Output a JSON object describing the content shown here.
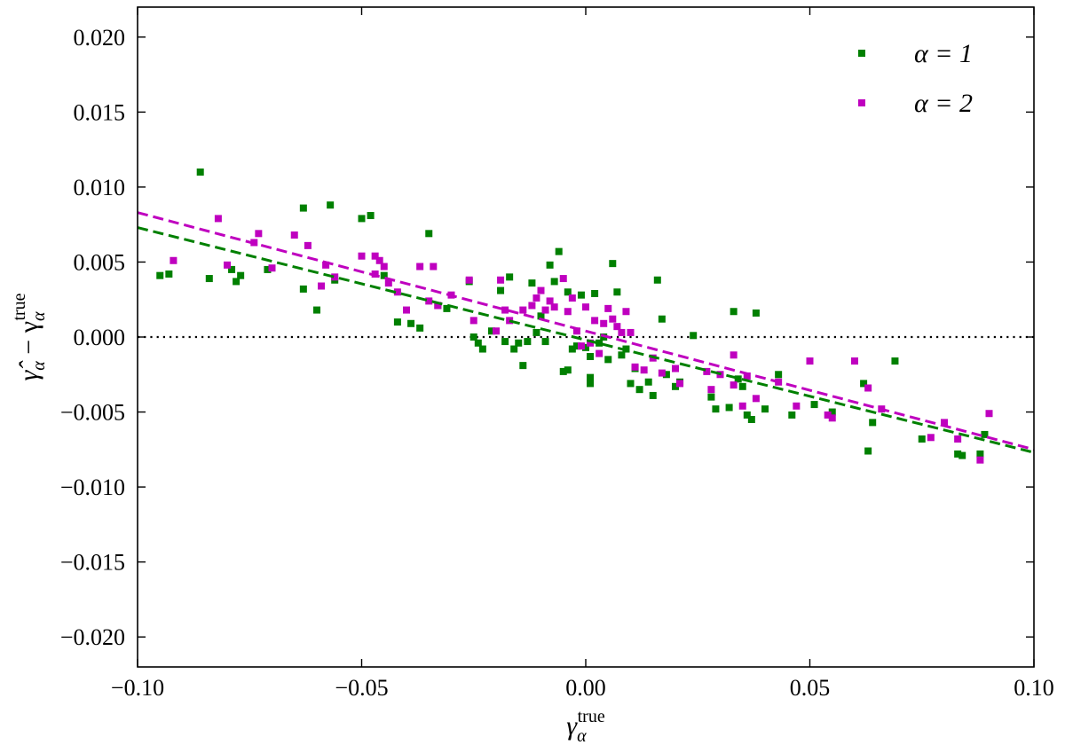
{
  "chart_data": {
    "type": "scatter",
    "title": "",
    "xlabel": "γ_α^true",
    "ylabel": "γ̂_α − γ_α^true",
    "xlim": [
      -0.1,
      0.1
    ],
    "ylim": [
      -0.022,
      0.022
    ],
    "xticks": [
      -0.1,
      -0.05,
      0.0,
      0.05,
      0.1
    ],
    "xtick_labels": [
      "−0.10",
      "−0.05",
      "0.00",
      "0.05",
      "0.10"
    ],
    "yticks": [
      -0.02,
      -0.015,
      -0.01,
      -0.005,
      0.0,
      0.005,
      0.01,
      0.015,
      0.02
    ],
    "ytick_labels": [
      "−0.020",
      "−0.015",
      "−0.010",
      "−0.005",
      "0.000",
      "0.005",
      "0.010",
      "0.015",
      "0.020"
    ],
    "grid": false,
    "legend_position": "top-right",
    "reference_line": {
      "y": 0.0,
      "style": "dotted",
      "color": "#000000"
    },
    "series": [
      {
        "name": "α = 1",
        "color": "#008000",
        "marker": "square",
        "fit": {
          "x": [
            -0.1,
            0.1
          ],
          "y": [
            0.0073,
            -0.0077
          ]
        },
        "points": [
          [
            -0.095,
            0.0041
          ],
          [
            -0.093,
            0.0042
          ],
          [
            -0.086,
            0.011
          ],
          [
            -0.084,
            0.0039
          ],
          [
            -0.079,
            0.0045
          ],
          [
            -0.078,
            0.0037
          ],
          [
            -0.077,
            0.0041
          ],
          [
            -0.071,
            0.0045
          ],
          [
            -0.063,
            0.0086
          ],
          [
            -0.063,
            0.0032
          ],
          [
            -0.06,
            0.0018
          ],
          [
            -0.057,
            0.0088
          ],
          [
            -0.056,
            0.0038
          ],
          [
            -0.05,
            0.0079
          ],
          [
            -0.048,
            0.0081
          ],
          [
            -0.045,
            0.0041
          ],
          [
            -0.042,
            0.001
          ],
          [
            -0.039,
            0.0009
          ],
          [
            -0.037,
            0.0006
          ],
          [
            -0.035,
            0.0069
          ],
          [
            -0.033,
            0.0021
          ],
          [
            -0.031,
            0.0019
          ],
          [
            -0.026,
            0.0037
          ],
          [
            -0.025,
            0.0
          ],
          [
            -0.024,
            -0.0004
          ],
          [
            -0.023,
            -0.0008
          ],
          [
            -0.021,
            0.0004
          ],
          [
            -0.019,
            0.0031
          ],
          [
            -0.018,
            -0.0003
          ],
          [
            -0.017,
            0.004
          ],
          [
            -0.016,
            -0.0008
          ],
          [
            -0.015,
            -0.0004
          ],
          [
            -0.014,
            -0.0019
          ],
          [
            -0.013,
            -0.0003
          ],
          [
            -0.012,
            0.0036
          ],
          [
            -0.011,
            0.0003
          ],
          [
            -0.01,
            0.0014
          ],
          [
            -0.009,
            -0.0003
          ],
          [
            -0.008,
            0.0048
          ],
          [
            -0.007,
            0.0037
          ],
          [
            -0.006,
            0.0057
          ],
          [
            -0.005,
            -0.0023
          ],
          [
            -0.004,
            -0.0022
          ],
          [
            -0.004,
            0.003
          ],
          [
            -0.003,
            -0.0008
          ],
          [
            -0.002,
            -0.0006
          ],
          [
            -0.001,
            0.0028
          ],
          [
            0.0,
            -0.0007
          ],
          [
            0.001,
            -0.0013
          ],
          [
            0.001,
            -0.0031
          ],
          [
            0.001,
            -0.0027
          ],
          [
            0.002,
            0.0029
          ],
          [
            0.003,
            -0.0004
          ],
          [
            0.004,
            0.0
          ],
          [
            0.005,
            -0.0015
          ],
          [
            0.006,
            0.0049
          ],
          [
            0.007,
            0.003
          ],
          [
            0.008,
            -0.0012
          ],
          [
            0.009,
            -0.0008
          ],
          [
            0.01,
            -0.0031
          ],
          [
            0.011,
            -0.0021
          ],
          [
            0.012,
            -0.0035
          ],
          [
            0.014,
            -0.003
          ],
          [
            0.015,
            -0.0039
          ],
          [
            0.016,
            0.0038
          ],
          [
            0.017,
            0.0012
          ],
          [
            0.018,
            -0.0025
          ],
          [
            0.02,
            -0.0033
          ],
          [
            0.021,
            -0.003
          ],
          [
            0.024,
            0.0001
          ],
          [
            0.028,
            -0.004
          ],
          [
            0.029,
            -0.0048
          ],
          [
            0.032,
            -0.0047
          ],
          [
            0.033,
            0.0017
          ],
          [
            0.034,
            -0.0028
          ],
          [
            0.035,
            -0.0033
          ],
          [
            0.036,
            -0.0052
          ],
          [
            0.037,
            -0.0055
          ],
          [
            0.038,
            0.0016
          ],
          [
            0.04,
            -0.0048
          ],
          [
            0.043,
            -0.0025
          ],
          [
            0.046,
            -0.0052
          ],
          [
            0.051,
            -0.0045
          ],
          [
            0.055,
            -0.005
          ],
          [
            0.062,
            -0.0031
          ],
          [
            0.063,
            -0.0076
          ],
          [
            0.064,
            -0.0057
          ],
          [
            0.069,
            -0.0016
          ],
          [
            0.075,
            -0.0068
          ],
          [
            0.083,
            -0.0078
          ],
          [
            0.084,
            -0.0079
          ],
          [
            0.088,
            -0.0078
          ],
          [
            0.089,
            -0.0065
          ]
        ]
      },
      {
        "name": "α = 2",
        "color": "#bf00bf",
        "marker": "square",
        "fit": {
          "x": [
            -0.1,
            0.1
          ],
          "y": [
            0.0083,
            -0.0075
          ]
        },
        "points": [
          [
            -0.092,
            0.0051
          ],
          [
            -0.082,
            0.0079
          ],
          [
            -0.08,
            0.0048
          ],
          [
            -0.074,
            0.0063
          ],
          [
            -0.073,
            0.0069
          ],
          [
            -0.07,
            0.0046
          ],
          [
            -0.065,
            0.0068
          ],
          [
            -0.062,
            0.0061
          ],
          [
            -0.059,
            0.0034
          ],
          [
            -0.058,
            0.0048
          ],
          [
            -0.056,
            0.004
          ],
          [
            -0.05,
            0.0054
          ],
          [
            -0.047,
            0.0042
          ],
          [
            -0.047,
            0.0054
          ],
          [
            -0.046,
            0.0051
          ],
          [
            -0.045,
            0.0047
          ],
          [
            -0.044,
            0.0036
          ],
          [
            -0.042,
            0.003
          ],
          [
            -0.04,
            0.0018
          ],
          [
            -0.037,
            0.0047
          ],
          [
            -0.035,
            0.0024
          ],
          [
            -0.034,
            0.0047
          ],
          [
            -0.033,
            0.0021
          ],
          [
            -0.03,
            0.0028
          ],
          [
            -0.026,
            0.0038
          ],
          [
            -0.025,
            0.0011
          ],
          [
            -0.02,
            0.0004
          ],
          [
            -0.019,
            0.0038
          ],
          [
            -0.018,
            0.0018
          ],
          [
            -0.017,
            0.0011
          ],
          [
            -0.014,
            0.0018
          ],
          [
            -0.012,
            0.0021
          ],
          [
            -0.011,
            0.0026
          ],
          [
            -0.01,
            0.0031
          ],
          [
            -0.009,
            0.0018
          ],
          [
            -0.008,
            0.0024
          ],
          [
            -0.007,
            0.002
          ],
          [
            -0.005,
            0.0039
          ],
          [
            -0.004,
            0.0017
          ],
          [
            -0.003,
            0.0026
          ],
          [
            -0.002,
            0.0004
          ],
          [
            -0.001,
            -0.0006
          ],
          [
            0.0,
            0.002
          ],
          [
            0.001,
            -0.0004
          ],
          [
            0.002,
            0.0011
          ],
          [
            0.003,
            -0.0011
          ],
          [
            0.004,
            0.0009
          ],
          [
            0.005,
            0.0019
          ],
          [
            0.006,
            0.0012
          ],
          [
            0.007,
            0.0007
          ],
          [
            0.008,
            0.0003
          ],
          [
            0.009,
            0.0017
          ],
          [
            0.01,
            0.0003
          ],
          [
            0.011,
            -0.002
          ],
          [
            0.013,
            -0.0022
          ],
          [
            0.015,
            -0.0014
          ],
          [
            0.017,
            -0.0024
          ],
          [
            0.02,
            -0.0021
          ],
          [
            0.021,
            -0.0031
          ],
          [
            0.027,
            -0.0023
          ],
          [
            0.028,
            -0.0035
          ],
          [
            0.03,
            -0.0025
          ],
          [
            0.033,
            -0.0032
          ],
          [
            0.033,
            -0.0012
          ],
          [
            0.035,
            -0.0046
          ],
          [
            0.036,
            -0.0026
          ],
          [
            0.038,
            -0.0041
          ],
          [
            0.043,
            -0.003
          ],
          [
            0.047,
            -0.0046
          ],
          [
            0.05,
            -0.0016
          ],
          [
            0.054,
            -0.0052
          ],
          [
            0.055,
            -0.0054
          ],
          [
            0.06,
            -0.0016
          ],
          [
            0.063,
            -0.0034
          ],
          [
            0.066,
            -0.0048
          ],
          [
            0.077,
            -0.0067
          ],
          [
            0.08,
            -0.0057
          ],
          [
            0.083,
            -0.0068
          ],
          [
            0.088,
            -0.0082
          ],
          [
            0.09,
            -0.0051
          ]
        ]
      }
    ]
  }
}
